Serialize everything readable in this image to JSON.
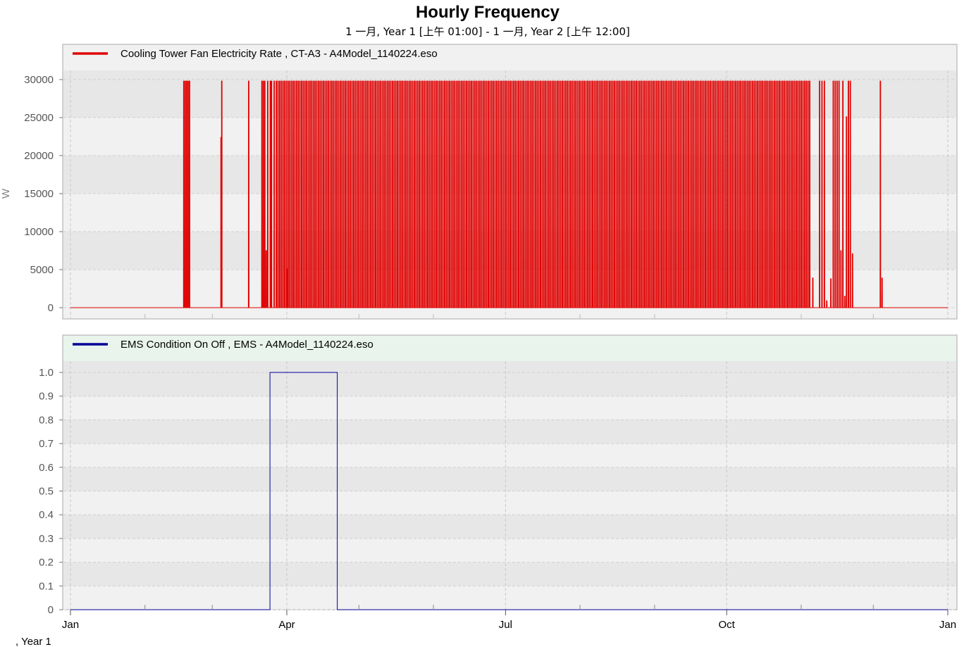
{
  "title": "Hourly Frequency",
  "subtitle": "1 一月, Year 1 [上午 01:00] - 1 一月, Year 2 [上午 12:00]",
  "footer": ", Year 1",
  "chart_data": [
    {
      "type": "line",
      "series": [
        {
          "name": "Cooling Tower Fan Electricity Rate , CT-A3 - A4Model_1140224.eso",
          "color": "#e00000",
          "pulses": [
            {
              "day": 47.0,
              "value": 29800
            },
            {
              "day": 47.6,
              "value": 29800
            },
            {
              "day": 48.2,
              "value": 29800
            },
            {
              "day": 48.8,
              "value": 29800
            },
            {
              "day": 49.4,
              "value": 29800
            },
            {
              "day": 62.5,
              "value": 22400
            },
            {
              "day": 62.8,
              "value": 29800
            },
            {
              "day": 74.0,
              "value": 29800
            },
            {
              "day": 79.5,
              "value": 29800
            },
            {
              "day": 80.1,
              "value": 29800
            },
            {
              "day": 80.7,
              "value": 29800
            },
            {
              "day": 81.3,
              "value": 7500
            },
            {
              "day": 81.9,
              "value": 29800
            },
            {
              "day": 83.0,
              "value": 29800
            },
            {
              "day": 83.5,
              "value": 29800
            },
            {
              "day": 84.6,
              "value": 29800
            },
            {
              "day": 89.9,
              "value": 5100
            },
            {
              "day": 308.7,
              "value": 3900
            },
            {
              "day": 311.5,
              "value": 29800
            },
            {
              "day": 312.5,
              "value": 29800
            },
            {
              "day": 313.5,
              "value": 29800
            },
            {
              "day": 314.5,
              "value": 900
            },
            {
              "day": 316.2,
              "value": 3800
            },
            {
              "day": 317.2,
              "value": 29800
            },
            {
              "day": 318.0,
              "value": 29800
            },
            {
              "day": 318.8,
              "value": 29800
            },
            {
              "day": 319.6,
              "value": 29800
            },
            {
              "day": 320.4,
              "value": 7500
            },
            {
              "day": 321.2,
              "value": 29800
            },
            {
              "day": 322.0,
              "value": 1500
            },
            {
              "day": 322.7,
              "value": 25100
            },
            {
              "day": 323.5,
              "value": 29800
            },
            {
              "day": 324.3,
              "value": 29800
            },
            {
              "day": 325.2,
              "value": 7100
            },
            {
              "day": 336.8,
              "value": 29800
            },
            {
              "day": 337.5,
              "value": 3900
            }
          ],
          "dense_range": {
            "start_day": 85.5,
            "end_day": 307.5,
            "interval_days": 0.7,
            "value": 29800
          }
        }
      ],
      "ylabel": "W",
      "ylim": [
        0,
        30000
      ],
      "yticks": [
        "0",
        "5000",
        "10000",
        "15000",
        "20000",
        "25000",
        "30000"
      ],
      "grid": true,
      "legend_placement": "top-left"
    },
    {
      "type": "line",
      "series": [
        {
          "name": "EMS Condition On Off , EMS - A4Model_1140224.eso",
          "color": "#000099",
          "steps": [
            {
              "day": 0,
              "value": 0
            },
            {
              "day": 83,
              "value": 1
            },
            {
              "day": 111,
              "value": 0
            },
            {
              "day": 365,
              "value": 0
            }
          ]
        }
      ],
      "ylim": [
        0,
        1.0
      ],
      "yticks": [
        "0",
        "0.1",
        "0.2",
        "0.3",
        "0.4",
        "0.5",
        "0.6",
        "0.7",
        "0.8",
        "0.9",
        "1.0"
      ],
      "grid": true,
      "legend_placement": "top-left"
    }
  ],
  "x_axis": {
    "xlim": [
      0,
      365
    ],
    "tick_labels": [
      {
        "label": "Jan",
        "day": 0
      },
      {
        "label": "Apr",
        "day": 90
      },
      {
        "label": "Jul",
        "day": 181
      },
      {
        "label": "Oct",
        "day": 273
      },
      {
        "label": "Jan",
        "day": 365
      }
    ],
    "minor_tick_days": [
      31,
      59,
      120,
      151,
      212,
      243,
      304,
      334
    ]
  }
}
